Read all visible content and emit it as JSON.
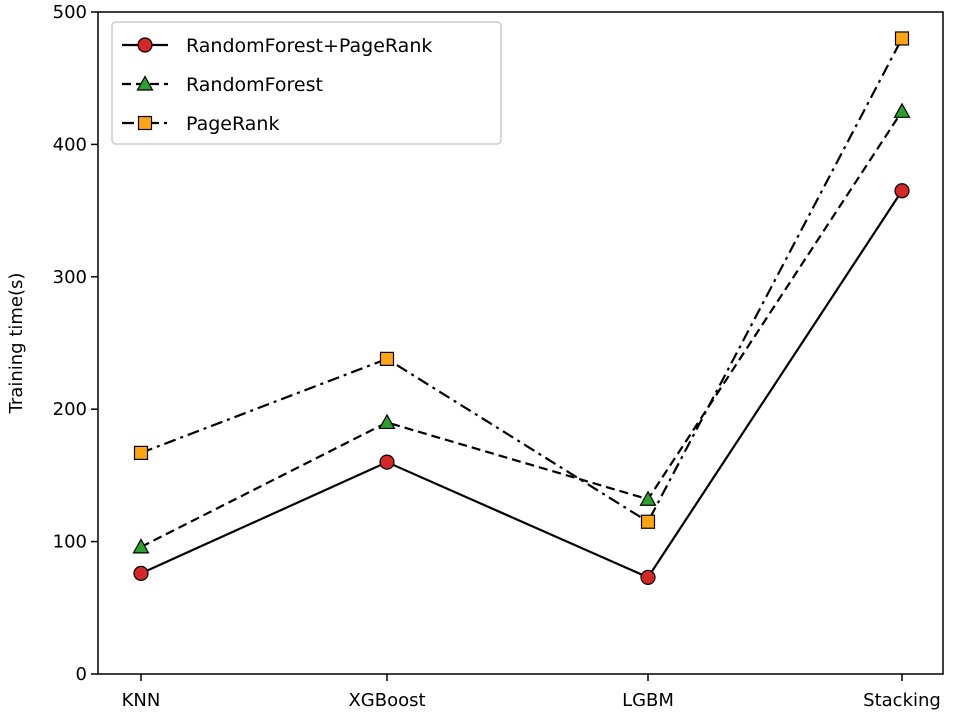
{
  "chart_data": {
    "type": "line",
    "categories": [
      "KNN",
      "XGBoost",
      "LGBM",
      "Stacking"
    ],
    "ylabel": "Training time(s)",
    "xlabel": "",
    "ylim": [
      0,
      500
    ],
    "yticks": [
      0,
      100,
      200,
      300,
      400,
      500
    ],
    "grid": false,
    "legend_position": "top-left",
    "series": [
      {
        "name": "RandomForest+PageRank",
        "values": [
          76,
          160,
          73,
          365
        ],
        "marker": "circle",
        "line_style": "solid",
        "marker_color": "#d62728"
      },
      {
        "name": "RandomForest",
        "values": [
          96,
          190,
          132,
          425
        ],
        "marker": "triangle",
        "line_style": "dashed",
        "marker_color": "#2ca02c"
      },
      {
        "name": "PageRank",
        "values": [
          167,
          238,
          115,
          480
        ],
        "marker": "square",
        "line_style": "dashdot",
        "marker_color": "#ffa514"
      }
    ]
  }
}
